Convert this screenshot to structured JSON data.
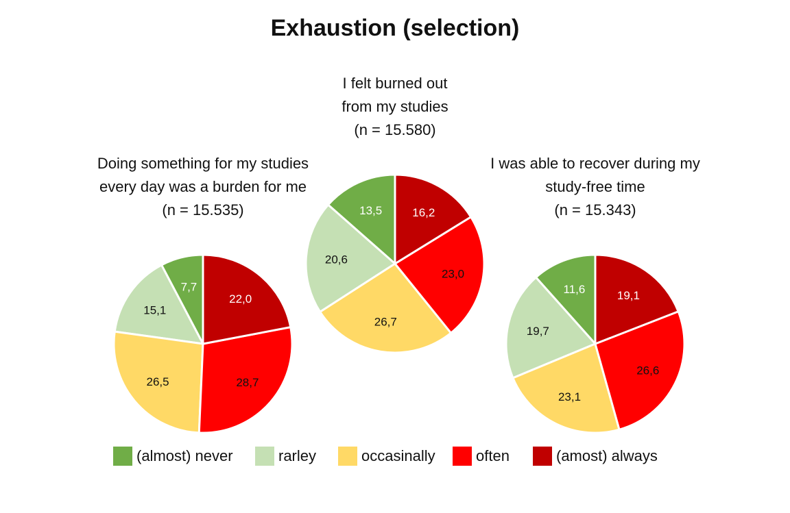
{
  "title": "Exhaustion (selection)",
  "chart_data": [
    {
      "type": "pie",
      "title_lines": [
        "Doing something for my studies",
        "every day was a burden for me",
        "(n = 15.535)"
      ],
      "categories": [
        "(almost) never",
        "rarley",
        "occasinally",
        "often",
        "(amost) always"
      ],
      "values": [
        7.7,
        15.1,
        26.5,
        28.7,
        22.0
      ],
      "labels": [
        "7,7",
        "15,1",
        "26,5",
        "28,7",
        "22,0"
      ]
    },
    {
      "type": "pie",
      "title_lines": [
        "I felt burned out",
        "from my studies",
        "(n = 15.580)"
      ],
      "categories": [
        "(almost) never",
        "rarley",
        "occasinally",
        "often",
        "(amost) always"
      ],
      "values": [
        13.5,
        20.6,
        26.7,
        23.0,
        16.2
      ],
      "labels": [
        "13,5",
        "20,6",
        "26,7",
        "23,0",
        "16,2"
      ]
    },
    {
      "type": "pie",
      "title_lines": [
        "I was able to recover during my",
        "study-free time",
        "(n = 15.343)"
      ],
      "categories": [
        "(almost) never",
        "rarley",
        "occasinally",
        "often",
        "(amost) always"
      ],
      "values": [
        11.6,
        19.7,
        23.1,
        26.6,
        19.1
      ],
      "labels": [
        "11,6",
        "19,7",
        "23,1",
        "26,6",
        "19,1"
      ]
    }
  ],
  "legend": [
    {
      "label": "(almost) never",
      "color": "#70AD47"
    },
    {
      "label": "rarley",
      "color": "#C5E0B4"
    },
    {
      "label": "occasinally",
      "color": "#FFD966"
    },
    {
      "label": "often",
      "color": "#FF0000"
    },
    {
      "label": "(amost) always",
      "color": "#C00000"
    }
  ],
  "label_colors": [
    "#ffffff",
    "#111111",
    "#111111",
    "#111111",
    "#ffffff"
  ]
}
